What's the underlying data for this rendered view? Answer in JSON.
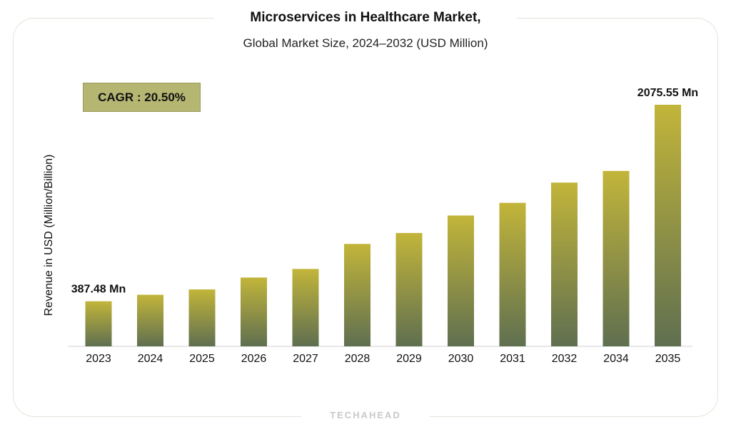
{
  "chart_data": {
    "type": "bar",
    "title": "Microservices in Healthcare Market,",
    "subtitle": "Global Market Size, 2024–2032 (USD Million)",
    "xlabel": "",
    "ylabel": "Revenue in USD (Million/Billion)",
    "categories": [
      "2023",
      "2024",
      "2025",
      "2026",
      "2027",
      "2028",
      "2029",
      "2030",
      "2031",
      "2032",
      "2034",
      "2035"
    ],
    "values": [
      387.48,
      443,
      489,
      591,
      665,
      880,
      974,
      1124,
      1233,
      1407,
      1507,
      2075.55
    ],
    "data_labels": [
      {
        "index": 0,
        "text": "387.48 Mn"
      },
      {
        "index": 11,
        "text": "2075.55 Mn"
      }
    ],
    "ylim": [
      0,
      2075.55
    ],
    "grid": false,
    "legend": "none",
    "annotation": "CAGR : 20.50%"
  },
  "footer": {
    "brand": "TECHAHEAD"
  },
  "colors": {
    "bar_top": "#c2b53a",
    "bar_bottom": "#5f6f50",
    "cagr_bg": "#b5b672"
  }
}
